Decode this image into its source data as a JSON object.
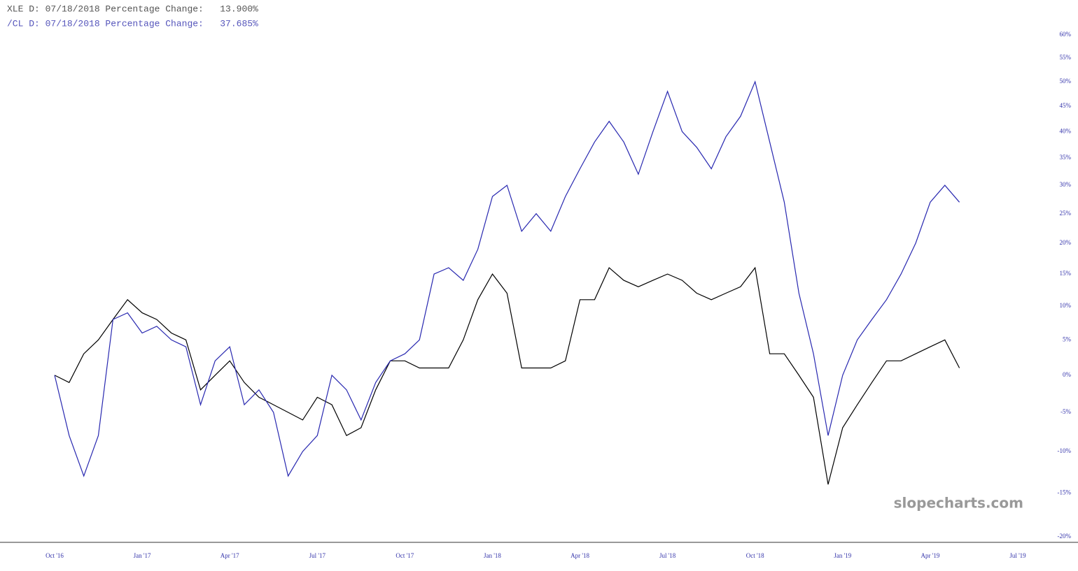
{
  "chart_data": {
    "type": "line",
    "annotations": [
      "XLE D: 07/18/2018 Percentage Change:   13.900%",
      "/CL D: 07/18/2018 Percentage Change:   37.685%",
      "slopecharts.com"
    ],
    "categories": [
      "Oct '16",
      null,
      null,
      null,
      null,
      null,
      "Jan '17",
      null,
      null,
      null,
      null,
      null,
      "Apr '17",
      null,
      null,
      null,
      null,
      null,
      "Jul '17",
      null,
      null,
      null,
      null,
      null,
      "Oct '17",
      null,
      null,
      null,
      null,
      null,
      "Jan '18",
      null,
      null,
      null,
      null,
      null,
      "Apr '18",
      null,
      null,
      null,
      null,
      null,
      "Jul '18",
      null,
      null,
      null,
      null,
      null,
      "Oct '18",
      null,
      null,
      null,
      null,
      null,
      "Jan '19",
      null,
      null,
      null,
      null,
      null,
      "Apr '19",
      null,
      null,
      null,
      null,
      null,
      "Jul '19"
    ],
    "series": [
      {
        "color": "#000000",
        "values": [
          0,
          -1,
          3,
          5,
          8,
          11,
          9,
          8,
          6,
          5,
          -2,
          0,
          2,
          -1,
          -3,
          -4,
          -5,
          -6,
          -3,
          -4,
          -8,
          -7,
          -2,
          2,
          2,
          1,
          1,
          1,
          5,
          11,
          15,
          12,
          1,
          1,
          1,
          2,
          11,
          11,
          16,
          14,
          13,
          14,
          15,
          14,
          12,
          11,
          12,
          13,
          16,
          3,
          3,
          0,
          -3,
          -14,
          -7,
          -4,
          -1,
          2,
          2,
          3,
          4,
          5,
          1,
          null,
          null,
          null,
          null
        ]
      },
      {
        "color": "#2828b0",
        "values": [
          0,
          -8,
          -13,
          -8,
          8,
          9,
          6,
          7,
          5,
          4,
          -4,
          2,
          4,
          -4,
          -2,
          -5,
          -13,
          -10,
          -8,
          0,
          -2,
          -6,
          -1,
          2,
          3,
          5,
          15,
          16,
          14,
          19,
          28,
          30,
          22,
          25,
          22,
          28,
          33,
          38,
          42,
          38,
          32,
          40,
          48,
          40,
          37,
          33,
          39,
          43,
          50,
          38,
          27,
          12,
          3,
          -8,
          0,
          5,
          8,
          11,
          15,
          20,
          27,
          30,
          27,
          null,
          null,
          null,
          null
        ]
      }
    ],
    "ylim": [
      -20,
      60
    ],
    "yscale": "log",
    "yticks": [
      {
        "value": 60,
        "label": "60%"
      },
      {
        "value": 55,
        "label": "55%"
      },
      {
        "value": 50,
        "label": "50%"
      },
      {
        "value": 45,
        "label": "45%"
      },
      {
        "value": 40,
        "label": "40%"
      },
      {
        "value": 35,
        "label": "35%"
      },
      {
        "value": 30,
        "label": "30%"
      },
      {
        "value": 25,
        "label": "25%"
      },
      {
        "value": 20,
        "label": "20%"
      },
      {
        "value": 15,
        "label": "15%"
      },
      {
        "value": 10,
        "label": "10%"
      },
      {
        "value": 5,
        "label": "5%"
      },
      {
        "value": 0,
        "label": "0%"
      },
      {
        "value": -5,
        "label": "-5%"
      },
      {
        "value": -10,
        "label": "-10%"
      },
      {
        "value": -15,
        "label": "-15%"
      },
      {
        "value": -20,
        "label": "-20%"
      }
    ],
    "grid": false
  }
}
